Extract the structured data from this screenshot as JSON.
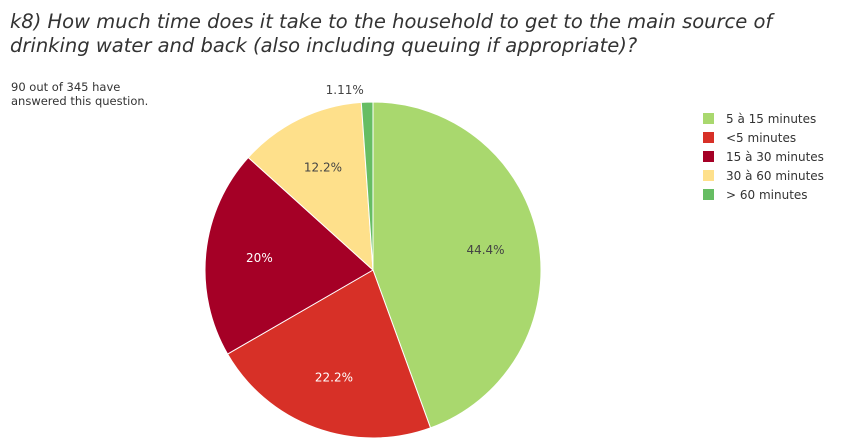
{
  "title": {
    "line1": "k8) How much time does it take to the household to get to the main source of",
    "line2": "drinking water and back (also including queuing if appropriate)?"
  },
  "response_note": {
    "line1": "90 out of 345 have",
    "line2": "answered this question."
  },
  "chart_data": {
    "type": "pie",
    "title": "k8) How much time does it take to the household to get to the main source of drinking water and back (also including queuing if appropriate)?",
    "legend_position": "right",
    "slices": [
      {
        "label": "5 à 15 minutes",
        "value": 44.4,
        "display": "44.4%",
        "color": "#a9d86e"
      },
      {
        "label": "<5 minutes",
        "value": 22.2,
        "display": "22.2%",
        "color": "#d73027"
      },
      {
        "label": "15 à 30 minutes",
        "value": 20.0,
        "display": "20%",
        "color": "#a50026"
      },
      {
        "label": "30 à 60 minutes",
        "value": 12.2,
        "display": "12.2%",
        "color": "#fee08b"
      },
      {
        "label": "> 60 minutes",
        "value": 1.11,
        "display": "1.11%",
        "color": "#66bd63"
      }
    ]
  }
}
